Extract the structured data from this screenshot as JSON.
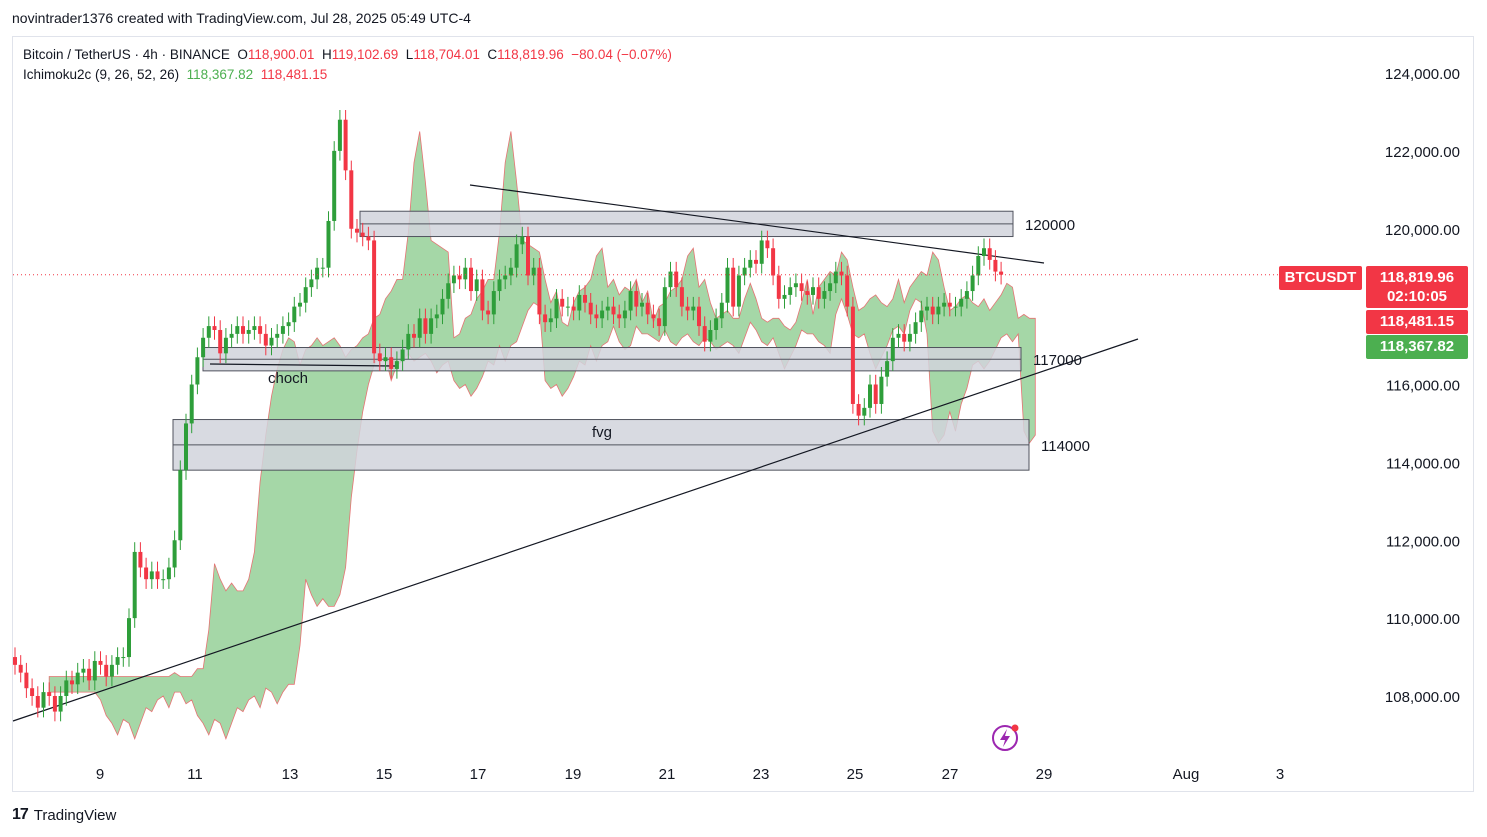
{
  "header": {
    "title": "novintrader1376 created with TradingView.com, Jul 28, 2025 05:49 UTC-4"
  },
  "legend": {
    "symbol": "Bitcoin / TetherUS · 4h · BINANCE",
    "open_label": "O",
    "open": "118,900.01",
    "high_label": "H",
    "high": "119,102.69",
    "low_label": "L",
    "low": "118,704.01",
    "close_label": "C",
    "close": "118,819.96",
    "change": "−80.04 (−0.07%)",
    "indicator": "Ichimoku2c (9, 26, 52, 26)",
    "ind_val1": "118,367.82",
    "ind_val2": "118,481.15"
  },
  "price_tags": {
    "symbol_tag": "BTCUSDT",
    "last_price": "118,819.96",
    "countdown": "02:10:05",
    "span_b": "118,481.15",
    "span_a": "118,367.82"
  },
  "colors": {
    "up": "#089981",
    "up_body": "#2e9e3a",
    "down": "#f23645",
    "cloud": "#4caf50",
    "zone": "#d1d4dc"
  },
  "footer": {
    "brand": "TradingView"
  },
  "icons": [
    "lightning-icon",
    "tradingview-logo-icon"
  ],
  "chart_data": {
    "type": "candlestick",
    "y_ticks": [
      "124,000.00",
      "122,000.00",
      "120,000.00",
      "116,000.00",
      "114,000.00",
      "112,000.00",
      "110,000.00",
      "108,000.00"
    ],
    "y_tick_values": [
      124000,
      122000,
      120000,
      116000,
      114000,
      112000,
      110000,
      108000
    ],
    "x_ticks": [
      "9",
      "11",
      "13",
      "15",
      "17",
      "19",
      "21",
      "23",
      "25",
      "27",
      "29",
      "Aug",
      "3"
    ],
    "ylim": [
      106800,
      124800
    ],
    "zones": [
      {
        "label": "120000",
        "top": 120450,
        "bottom": 119800
      },
      {
        "label": "117000",
        "top": 116950,
        "bottom": 116350
      },
      {
        "label": "114000",
        "top": 115100,
        "bottom": 113800
      }
    ],
    "annotations": [
      "choch",
      "fvg"
    ],
    "levels": {
      "choch": 116500
    },
    "candles_close_path": [
      [
        0,
        108800
      ],
      [
        1,
        108600
      ],
      [
        2,
        108200
      ],
      [
        3,
        108000
      ],
      [
        4,
        107700
      ],
      [
        5,
        108100
      ],
      [
        6,
        108000
      ],
      [
        7,
        107600
      ],
      [
        8,
        108000
      ],
      [
        9,
        108400
      ],
      [
        10,
        108300
      ],
      [
        11,
        108600
      ],
      [
        12,
        108700
      ],
      [
        13,
        108400
      ],
      [
        14,
        108900
      ],
      [
        15,
        108800
      ],
      [
        16,
        108500
      ],
      [
        17,
        108800
      ],
      [
        18,
        109000
      ],
      [
        19,
        109000
      ],
      [
        20,
        110000
      ],
      [
        21,
        111700
      ],
      [
        22,
        111300
      ],
      [
        23,
        111000
      ],
      [
        24,
        111200
      ],
      [
        25,
        111000
      ],
      [
        26,
        111000
      ],
      [
        27,
        111300
      ],
      [
        28,
        112000
      ],
      [
        29,
        113800
      ],
      [
        30,
        115000
      ],
      [
        31,
        116000
      ],
      [
        32,
        116700
      ],
      [
        33,
        117200
      ],
      [
        34,
        117500
      ],
      [
        35,
        117400
      ],
      [
        36,
        116800
      ],
      [
        37,
        117200
      ],
      [
        38,
        117300
      ],
      [
        39,
        117500
      ],
      [
        40,
        117300
      ],
      [
        41,
        117400
      ],
      [
        42,
        117500
      ],
      [
        43,
        117300
      ],
      [
        44,
        117000
      ],
      [
        45,
        117200
      ],
      [
        46,
        117300
      ],
      [
        47,
        117500
      ],
      [
        48,
        117600
      ],
      [
        49,
        118000
      ],
      [
        50,
        118100
      ],
      [
        51,
        118500
      ],
      [
        52,
        118700
      ],
      [
        53,
        119000
      ],
      [
        54,
        119000
      ],
      [
        55,
        120200
      ],
      [
        56,
        122000
      ],
      [
        57,
        122800
      ],
      [
        58,
        121500
      ],
      [
        59,
        120000
      ],
      [
        60,
        119900
      ],
      [
        61,
        119800
      ],
      [
        62,
        119700
      ],
      [
        63,
        116800
      ],
      [
        64,
        116600
      ],
      [
        65,
        116700
      ],
      [
        66,
        116400
      ],
      [
        67,
        116600
      ],
      [
        68,
        116900
      ],
      [
        69,
        117300
      ],
      [
        70,
        117200
      ],
      [
        71,
        117700
      ],
      [
        72,
        117300
      ],
      [
        73,
        117700
      ],
      [
        74,
        117800
      ],
      [
        75,
        118200
      ],
      [
        76,
        118600
      ],
      [
        77,
        118800
      ],
      [
        78,
        118700
      ],
      [
        79,
        119000
      ],
      [
        80,
        118400
      ],
      [
        81,
        118700
      ],
      [
        82,
        117900
      ],
      [
        83,
        117800
      ],
      [
        84,
        118400
      ],
      [
        85,
        118700
      ],
      [
        86,
        118800
      ],
      [
        87,
        119000
      ],
      [
        88,
        119600
      ],
      [
        89,
        119800
      ],
      [
        90,
        118800
      ],
      [
        91,
        119000
      ],
      [
        92,
        117800
      ],
      [
        93,
        117600
      ],
      [
        94,
        117700
      ],
      [
        95,
        118200
      ],
      [
        96,
        118000
      ],
      [
        97,
        118000
      ],
      [
        98,
        117900
      ],
      [
        99,
        118300
      ],
      [
        100,
        118100
      ],
      [
        101,
        117800
      ],
      [
        102,
        117700
      ],
      [
        103,
        117900
      ],
      [
        104,
        118000
      ],
      [
        105,
        117800
      ],
      [
        106,
        117700
      ],
      [
        107,
        117900
      ],
      [
        108,
        118400
      ],
      [
        109,
        118000
      ],
      [
        110,
        118100
      ],
      [
        111,
        117800
      ],
      [
        112,
        117700
      ],
      [
        113,
        117500
      ],
      [
        114,
        118500
      ],
      [
        115,
        118900
      ],
      [
        116,
        118500
      ],
      [
        117,
        118000
      ],
      [
        118,
        117900
      ],
      [
        119,
        118000
      ],
      [
        120,
        117500
      ],
      [
        121,
        117100
      ],
      [
        122,
        117400
      ],
      [
        123,
        117700
      ],
      [
        124,
        118100
      ],
      [
        125,
        119000
      ],
      [
        126,
        118000
      ],
      [
        127,
        118800
      ],
      [
        128,
        119000
      ],
      [
        129,
        119200
      ],
      [
        130,
        119100
      ],
      [
        131,
        119700
      ],
      [
        132,
        119500
      ],
      [
        133,
        118800
      ],
      [
        134,
        118200
      ],
      [
        135,
        118300
      ],
      [
        136,
        118500
      ],
      [
        137,
        118600
      ],
      [
        138,
        118400
      ],
      [
        139,
        118300
      ],
      [
        140,
        118500
      ],
      [
        141,
        118200
      ],
      [
        142,
        118400
      ],
      [
        143,
        118600
      ],
      [
        144,
        118900
      ],
      [
        145,
        118800
      ],
      [
        146,
        118000
      ],
      [
        147,
        115500
      ],
      [
        148,
        115200
      ],
      [
        149,
        115400
      ],
      [
        150,
        116000
      ],
      [
        151,
        115500
      ],
      [
        152,
        116200
      ],
      [
        153,
        116600
      ],
      [
        154,
        117200
      ],
      [
        155,
        117300
      ],
      [
        156,
        117100
      ],
      [
        157,
        117300
      ],
      [
        158,
        117600
      ],
      [
        159,
        117900
      ],
      [
        160,
        118000
      ],
      [
        161,
        117800
      ],
      [
        162,
        118000
      ],
      [
        163,
        118100
      ],
      [
        164,
        118000
      ],
      [
        165,
        118000
      ],
      [
        166,
        118200
      ],
      [
        167,
        118400
      ],
      [
        168,
        118800
      ],
      [
        169,
        119300
      ],
      [
        170,
        119500
      ],
      [
        171,
        119200
      ],
      [
        172,
        118900
      ],
      [
        173,
        118820
      ]
    ]
  }
}
